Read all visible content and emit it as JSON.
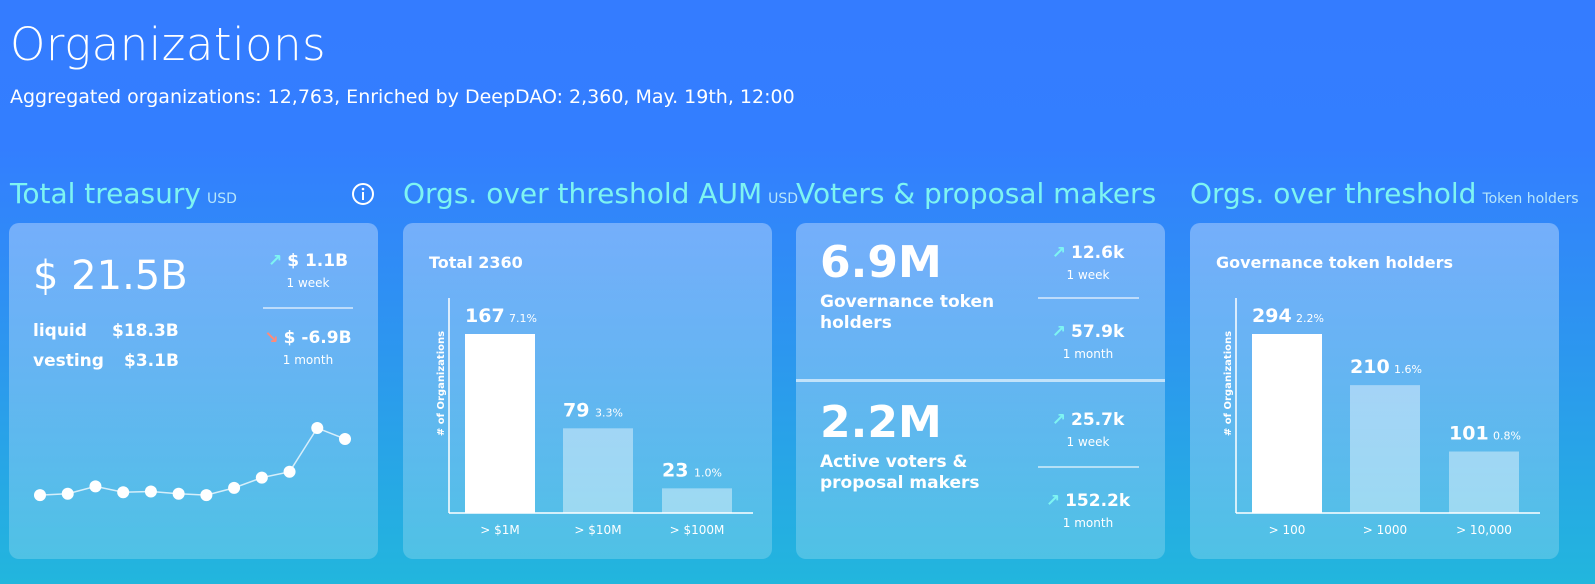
{
  "header": {
    "title": "Organizations",
    "subtitle": "Aggregated organizations: 12,763, Enriched by DeepDAO: 2,360, May. 19th, 12:00"
  },
  "sections": {
    "treasury": {
      "title": "Total treasury",
      "unit": "USD",
      "info_icon": "info-icon"
    },
    "aum": {
      "title": "Orgs. over threshold AUM",
      "unit": "USD"
    },
    "voters": {
      "title": "Voters & proposal makers"
    },
    "holders": {
      "title": "Orgs. over threshold",
      "unit": "Token holders"
    }
  },
  "treasury_card": {
    "total": "$ 21.5B",
    "liquid_label": "liquid",
    "liquid_value": "$18.3B",
    "vesting_label": "vesting",
    "vesting_value": "$3.1B",
    "change_week": "$ 1.1B",
    "change_week_period": "1 week",
    "change_month": "$ -6.9B",
    "change_month_period": "1 month",
    "up_icon": "arrow-up-right-icon",
    "down_icon": "arrow-down-right-icon",
    "colors": {
      "up": "#7ef4f2",
      "down": "#ff8a78"
    }
  },
  "aum_card": {
    "total_label": "Total 2360",
    "y_axis_label": "# of Organizations"
  },
  "voters_card": {
    "holders_value": "6.9M",
    "holders_label": "Governance token holders",
    "holders_week": "12.6k",
    "holders_week_period": "1 week",
    "holders_month": "57.9k",
    "holders_month_period": "1 month",
    "active_value": "2.2M",
    "active_label": "Active voters & proposal makers",
    "active_week": "25.7k",
    "active_week_period": "1 week",
    "active_month": "152.2k",
    "active_month_period": "1 month"
  },
  "holders_card": {
    "title": "Governance token holders",
    "y_axis_label": "# of Organizations"
  },
  "chart_data": [
    {
      "type": "line",
      "x": [
        1,
        2,
        3,
        4,
        5,
        6,
        7,
        8,
        9,
        10,
        11,
        12
      ],
      "series": [
        {
          "values": [
            0.08,
            0.1,
            0.2,
            0.12,
            0.13,
            0.1,
            0.08,
            0.18,
            0.32,
            0.4,
            1.0,
            0.85
          ]
        }
      ],
      "xlabel": "",
      "ylabel": "",
      "grid": false
    },
    {
      "type": "bar",
      "categories": [
        "> $1M",
        "> $10M",
        "> $100M"
      ],
      "values": [
        167,
        79,
        23
      ],
      "labels": [
        "7.1%",
        "3.3%",
        "1.0%"
      ],
      "ylabel": "# of Organizations",
      "ylim": [
        0,
        167
      ]
    },
    {
      "type": "bar",
      "categories": [
        "> 100",
        "> 1000",
        "> 10,000"
      ],
      "values": [
        294,
        210,
        101
      ],
      "labels": [
        "2.2%",
        "1.6%",
        "0.8%"
      ],
      "ylabel": "# of Organizations",
      "ylim": [
        0,
        294
      ]
    }
  ]
}
